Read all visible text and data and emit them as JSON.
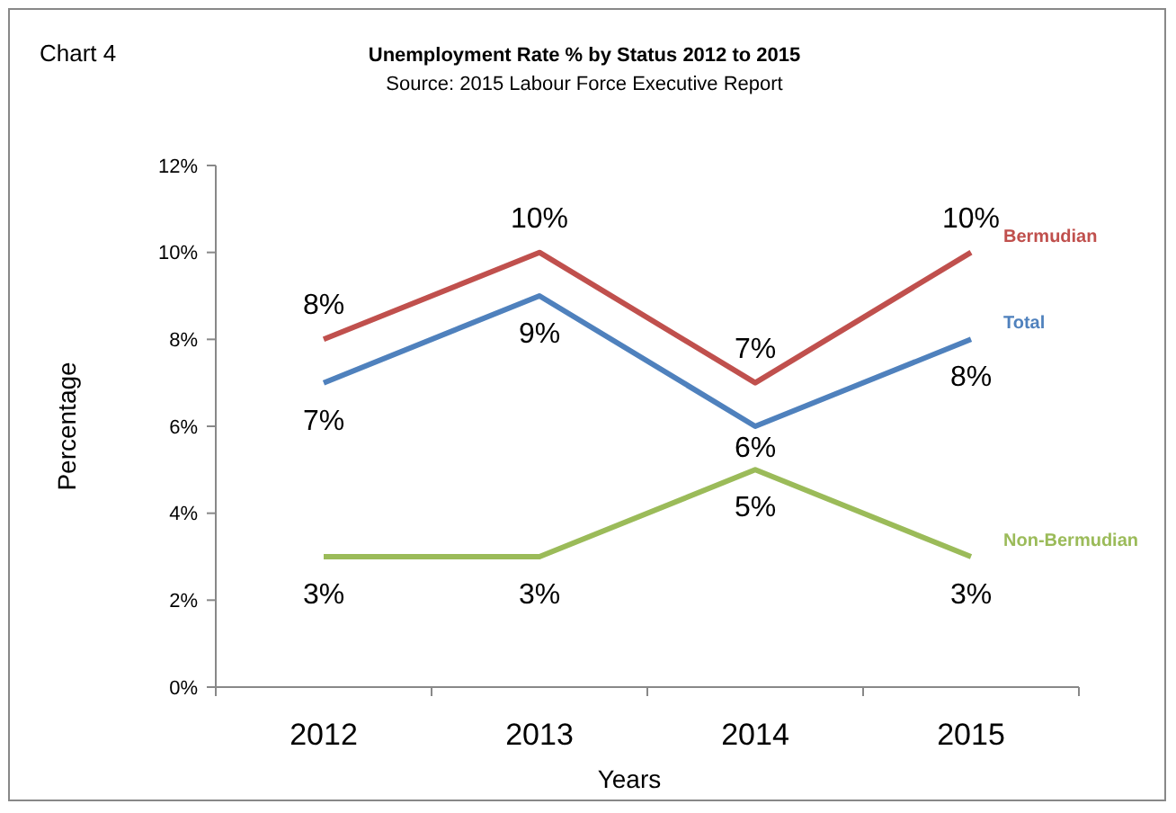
{
  "chart_data": {
    "type": "line",
    "title": "Unemployment Rate % by Status 2012 to 2015",
    "subtitle": "Source: 2015 Labour Force Executive Report",
    "xlabel": "Years",
    "ylabel": "Percentage",
    "annotations": [
      "Chart 4"
    ],
    "categories": [
      "2012",
      "2013",
      "2014",
      "2015"
    ],
    "series": [
      {
        "name": "Bermudian",
        "color": "#c0504d",
        "values": [
          8,
          10,
          7,
          10
        ],
        "value_labels": [
          "8%",
          "10%",
          "7%",
          "10%"
        ]
      },
      {
        "name": "Total",
        "color": "#4f81bd",
        "values": [
          7,
          9,
          6,
          8
        ],
        "value_labels": [
          "7%",
          "9%",
          "6%",
          "8%"
        ]
      },
      {
        "name": "Non-Bermudian",
        "color": "#9bbb59",
        "values": [
          3,
          3,
          5,
          3
        ],
        "value_labels": [
          "3%",
          "3%",
          "5%",
          "3%"
        ]
      }
    ],
    "ylim": [
      0,
      12
    ],
    "yticks": [
      {
        "value": 0,
        "label": "0%"
      },
      {
        "value": 2,
        "label": "2%"
      },
      {
        "value": 4,
        "label": "4%"
      },
      {
        "value": 6,
        "label": "6%"
      },
      {
        "value": 8,
        "label": "8%"
      },
      {
        "value": 10,
        "label": "10%"
      },
      {
        "value": 12,
        "label": "12%"
      }
    ],
    "grid": false,
    "legend": false,
    "marker": "none",
    "line_style": "solid"
  }
}
